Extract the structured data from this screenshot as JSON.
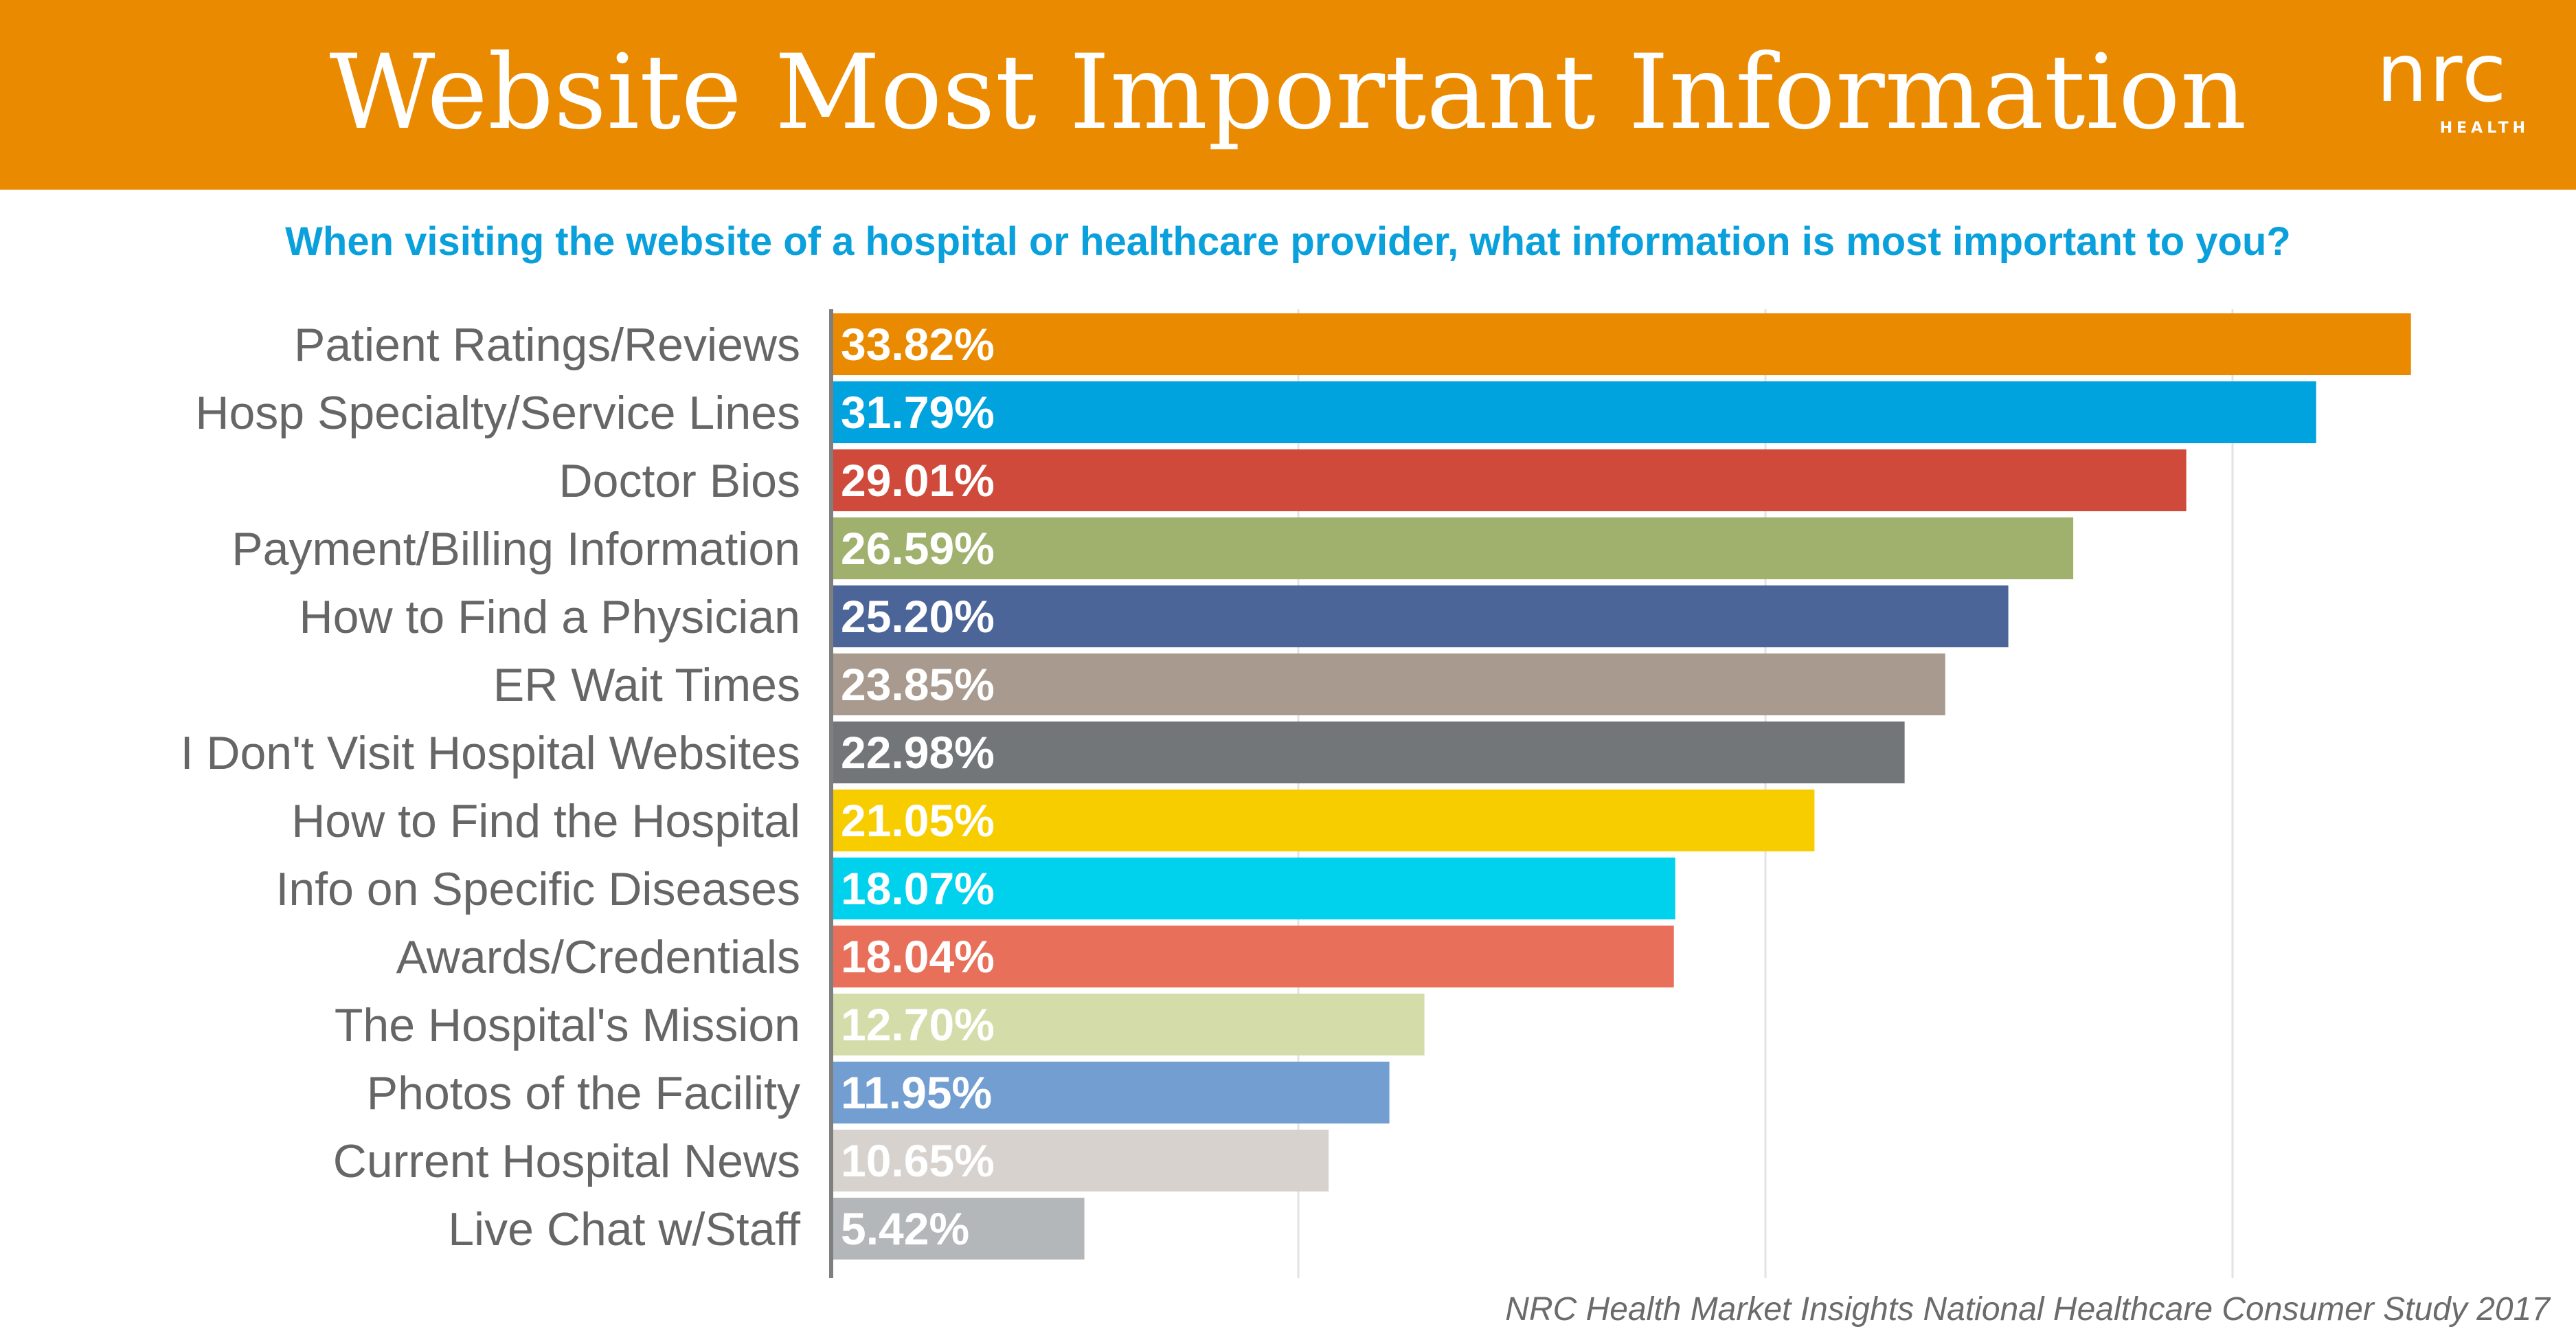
{
  "header": {
    "title": "Website Most Important Information"
  },
  "logo": {
    "text": "nrc",
    "subtext": "HEALTH"
  },
  "subtitle": "When visiting the website of a hospital or healthcare provider, what information is most important to you?",
  "source": "NRC Health Market Insights National Healthcare Consumer Study 2017",
  "chart_data": {
    "type": "bar",
    "orientation": "horizontal",
    "title": "Website Most Important Information",
    "subtitle": "When visiting the website of a hospital or healthcare provider, what information is most important to you?",
    "xlabel": "",
    "ylabel": "",
    "xlim": [
      0,
      35
    ],
    "grid": true,
    "value_suffix": "%",
    "categories": [
      "Patient Ratings/Reviews",
      "Hosp Specialty/Service Lines",
      "Doctor Bios",
      "Payment/Billing Information",
      "How to Find a Physician",
      "ER Wait Times",
      "I Don't Visit Hospital Websites",
      "How to Find the Hospital",
      "Info on Specific Diseases",
      "Awards/Credentials",
      "The Hospital's Mission",
      "Photos of the Facility",
      "Current Hospital News",
      "Live Chat w/Staff"
    ],
    "values": [
      33.82,
      31.79,
      29.01,
      26.59,
      25.2,
      23.85,
      22.98,
      21.05,
      18.07,
      18.04,
      12.7,
      11.95,
      10.65,
      5.42
    ],
    "labels": [
      "33.82%",
      "31.79%",
      "29.01%",
      "26.59%",
      "25.20%",
      "23.85%",
      "22.98%",
      "21.05%",
      "18.07%",
      "18.04%",
      "12.70%",
      "11.95%",
      "10.65%",
      "5.42%"
    ],
    "colors": [
      "#ea8a00",
      "#00a3de",
      "#cf4a3a",
      "#a0b06d",
      "#4b6599",
      "#a89a8e",
      "#737679",
      "#f7cd00",
      "#00d2ee",
      "#e8705a",
      "#d4ddaa",
      "#739ed2",
      "#d8d2ce",
      "#b4b7ba"
    ]
  }
}
